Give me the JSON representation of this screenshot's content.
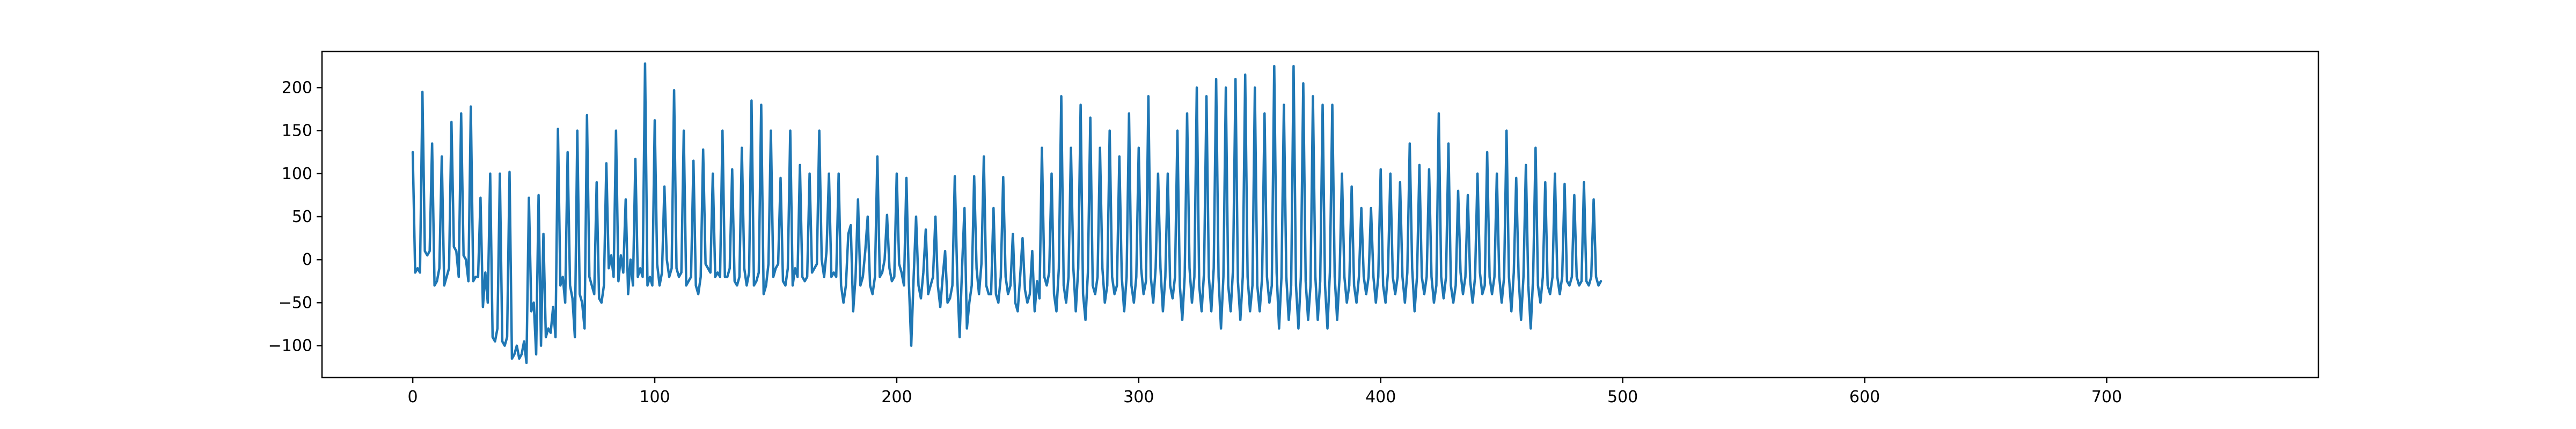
{
  "chart_data": {
    "type": "line",
    "title": "",
    "xlabel": "",
    "ylabel": "",
    "xlim": [
      -37.5,
      787.5
    ],
    "ylim": [
      -137,
      242
    ],
    "x_ticks": [
      0,
      100,
      200,
      300,
      400,
      500,
      600,
      700
    ],
    "x_tick_labels": [
      "0",
      "100",
      "200",
      "300",
      "400",
      "500",
      "600",
      "700"
    ],
    "y_ticks": [
      -100,
      -50,
      0,
      50,
      100,
      150,
      200
    ],
    "y_tick_labels": [
      "−100",
      "−50",
      "0",
      "50",
      "100",
      "150",
      "200"
    ],
    "grid": false,
    "legend": "none",
    "series": [
      {
        "color": "#1f77b4",
        "x_start": 0,
        "x_step": 1,
        "values": [
          125,
          -15,
          -10,
          -15,
          195,
          10,
          5,
          10,
          135,
          -30,
          -25,
          -10,
          120,
          -30,
          -20,
          -10,
          160,
          15,
          10,
          -20,
          170,
          5,
          0,
          -25,
          178,
          -25,
          -20,
          -20,
          72,
          -55,
          -15,
          -50,
          100,
          -90,
          -95,
          -80,
          100,
          -95,
          -100,
          -90,
          102,
          -115,
          -110,
          -100,
          -115,
          -110,
          -95,
          -120,
          72,
          -60,
          -50,
          -110,
          75,
          -100,
          30,
          -90,
          -80,
          -85,
          -55,
          -90,
          152,
          -30,
          -20,
          -50,
          125,
          -30,
          -45,
          -90,
          150,
          -40,
          -50,
          -80,
          168,
          -20,
          -30,
          -40,
          90,
          -45,
          -50,
          -30,
          112,
          -10,
          5,
          -20,
          150,
          -25,
          5,
          -15,
          70,
          -40,
          0,
          -30,
          117,
          -20,
          -10,
          -20,
          228,
          -30,
          -20,
          -30,
          162,
          -5,
          -30,
          -15,
          85,
          0,
          -20,
          -10,
          197,
          -10,
          -20,
          -15,
          150,
          -30,
          -25,
          -20,
          115,
          -30,
          -40,
          -20,
          128,
          -5,
          -10,
          -15,
          100,
          -20,
          -15,
          -20,
          150,
          -20,
          -20,
          -10,
          105,
          -25,
          -30,
          -20,
          130,
          -10,
          -30,
          -15,
          185,
          -30,
          -25,
          -15,
          180,
          -40,
          -30,
          -5,
          150,
          -20,
          -10,
          -5,
          95,
          -25,
          -30,
          -10,
          150,
          -30,
          -10,
          -20,
          110,
          -20,
          -25,
          -20,
          100,
          -15,
          -10,
          -5,
          150,
          0,
          -20,
          10,
          100,
          -20,
          -15,
          -20,
          100,
          -30,
          -50,
          -30,
          30,
          40,
          -60,
          -20,
          70,
          -30,
          -20,
          10,
          50,
          -30,
          -40,
          -20,
          120,
          -20,
          -15,
          0,
          52,
          -10,
          -25,
          -20,
          100,
          -5,
          -15,
          -30,
          95,
          -25,
          -100,
          -20,
          50,
          -30,
          -45,
          -15,
          35,
          -40,
          -30,
          -20,
          50,
          -30,
          -55,
          -20,
          10,
          -50,
          -45,
          -30,
          97,
          -20,
          -90,
          -10,
          60,
          -80,
          -50,
          -30,
          97,
          -10,
          -40,
          -5,
          120,
          -30,
          -40,
          -40,
          60,
          -40,
          -50,
          -20,
          96,
          -20,
          -40,
          -30,
          30,
          -50,
          -60,
          -20,
          25,
          -35,
          -50,
          -40,
          10,
          -60,
          -25,
          -45,
          130,
          -20,
          -30,
          -15,
          100,
          -40,
          -60,
          -10,
          190,
          -30,
          -50,
          -20,
          130,
          -10,
          -60,
          -10,
          180,
          -40,
          -70,
          -15,
          165,
          -30,
          -40,
          -20,
          130,
          -10,
          -50,
          -30,
          150,
          -20,
          -40,
          -30,
          120,
          -20,
          -60,
          -20,
          170,
          -30,
          -50,
          -20,
          130,
          -10,
          -40,
          -25,
          190,
          -20,
          -50,
          -10,
          100,
          -10,
          -60,
          -20,
          100,
          -30,
          -45,
          -20,
          150,
          -30,
          -70,
          -20,
          170,
          -10,
          -50,
          -20,
          200,
          -30,
          -60,
          -15,
          190,
          -20,
          -60,
          -10,
          210,
          -20,
          -80,
          -20,
          200,
          -30,
          -60,
          -10,
          210,
          -25,
          -70,
          -20,
          215,
          -20,
          -60,
          -30,
          200,
          -30,
          -60,
          -20,
          170,
          -20,
          -50,
          -30,
          225,
          -15,
          -80,
          -20,
          180,
          -20,
          -70,
          -30,
          225,
          -30,
          -80,
          -20,
          205,
          -25,
          -70,
          -30,
          190,
          -20,
          -70,
          -25,
          180,
          -30,
          -80,
          -15,
          180,
          -20,
          -70,
          -20,
          100,
          -20,
          -50,
          -30,
          85,
          -30,
          -50,
          -20,
          60,
          -20,
          -40,
          -20,
          60,
          -20,
          -50,
          -20,
          105,
          -30,
          -50,
          -15,
          100,
          -20,
          -40,
          -20,
          90,
          -20,
          -50,
          -15,
          135,
          -10,
          -60,
          -20,
          110,
          -20,
          -40,
          -20,
          105,
          -20,
          -50,
          -30,
          170,
          -20,
          -45,
          -20,
          135,
          -30,
          -50,
          -30,
          80,
          -15,
          -40,
          -20,
          75,
          -25,
          -50,
          -20,
          100,
          -15,
          -40,
          -30,
          125,
          -20,
          -40,
          -20,
          100,
          -20,
          -50,
          -20,
          150,
          -20,
          -60,
          -15,
          95,
          -20,
          -70,
          -20,
          110,
          -30,
          -80,
          -20,
          130,
          -30,
          -50,
          -20,
          90,
          -30,
          -40,
          -20,
          100,
          -20,
          -40,
          -20,
          88,
          -25,
          -30,
          -20,
          75,
          -20,
          -30,
          -25,
          90,
          -25,
          -30,
          -20,
          70,
          -20,
          -30,
          -25
        ]
      }
    ]
  }
}
